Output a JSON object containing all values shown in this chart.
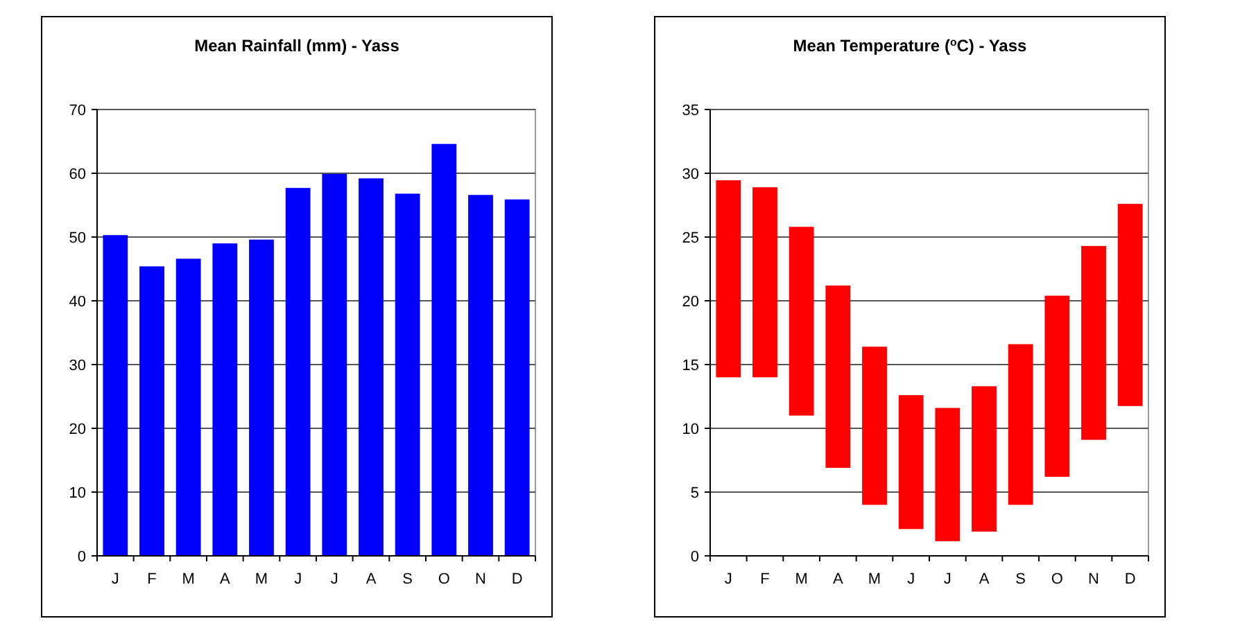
{
  "chart_data": [
    {
      "type": "bar",
      "title": "Mean Rainfall (mm) - Yass",
      "categories": [
        "J",
        "F",
        "M",
        "A",
        "M",
        "J",
        "J",
        "A",
        "S",
        "O",
        "N",
        "D"
      ],
      "values": [
        50.3,
        45.4,
        46.6,
        49.0,
        49.6,
        57.7,
        59.9,
        59.2,
        56.8,
        64.6,
        56.6,
        55.9
      ],
      "color": "#0000ff",
      "ylim": [
        0,
        70
      ],
      "yticks": [
        0,
        10,
        20,
        30,
        40,
        50,
        60,
        70
      ],
      "grid": "y"
    },
    {
      "type": "bar",
      "title": "Mean Temperature ($^{o}$C) - Yass",
      "categories": [
        "J",
        "F",
        "M",
        "A",
        "M",
        "J",
        "J",
        "A",
        "S",
        "O",
        "N",
        "D"
      ],
      "base": [
        14.0,
        14.0,
        11.0,
        6.9,
        4.0,
        2.1,
        1.15,
        1.9,
        4.0,
        6.2,
        9.1,
        11.75
      ],
      "values": [
        15.45,
        14.9,
        14.8,
        14.3,
        12.4,
        10.5,
        10.45,
        11.4,
        12.6,
        14.2,
        15.2,
        15.85
      ],
      "color": "#ff0000",
      "ylim": [
        0,
        35
      ],
      "yticks": [
        0,
        5,
        10,
        15,
        20,
        25,
        30,
        35
      ],
      "grid": "y"
    }
  ]
}
